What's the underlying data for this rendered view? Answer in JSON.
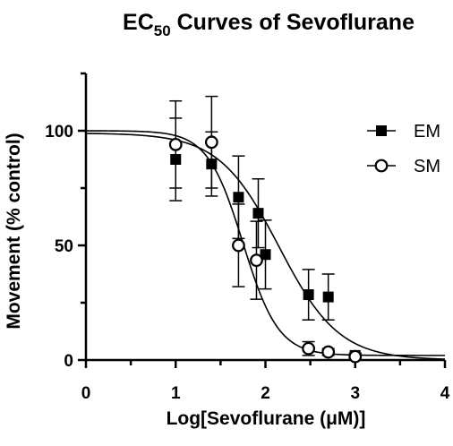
{
  "chart_data": {
    "type": "scatter",
    "title": "EC",
    "title_subscript": "50",
    "title_suffix": " Curves of Sevoflurane",
    "xlabel": "Log[Sevoflurane (μM)]",
    "ylabel": "Movement (% control)",
    "xlim": [
      0,
      4
    ],
    "ylim": [
      0,
      125
    ],
    "x_ticks": [
      0,
      1,
      2,
      3,
      4
    ],
    "y_ticks": [
      0,
      50,
      100
    ],
    "legend_position": "top-right",
    "series": [
      {
        "name": "EM",
        "marker": "filled-square",
        "points": [
          {
            "x": 1.0,
            "y": 87.5,
            "err": 18
          },
          {
            "x": 1.4,
            "y": 85.5,
            "err": 14
          },
          {
            "x": 1.7,
            "y": 71,
            "err": 18
          },
          {
            "x": 1.92,
            "y": 64,
            "err": 15
          },
          {
            "x": 2.0,
            "y": 46,
            "err": 15
          },
          {
            "x": 2.48,
            "y": 28.5,
            "err": 11
          },
          {
            "x": 2.7,
            "y": 27.5,
            "err": 10
          },
          {
            "x": 3.0,
            "y": 2,
            "err": 1
          }
        ],
        "fit": {
          "top": 99,
          "bottom": 0,
          "log_ec50": 2.15,
          "hill": 1.3
        }
      },
      {
        "name": "SM",
        "marker": "open-circle",
        "points": [
          {
            "x": 1.0,
            "y": 94,
            "err": 19
          },
          {
            "x": 1.4,
            "y": 95,
            "err": 20
          },
          {
            "x": 1.7,
            "y": 50,
            "err": 18
          },
          {
            "x": 1.9,
            "y": 43.5,
            "err": 17
          },
          {
            "x": 2.48,
            "y": 5,
            "err": 3
          },
          {
            "x": 2.7,
            "y": 3.5,
            "err": 1.5
          },
          {
            "x": 3.0,
            "y": 1.5,
            "err": 1
          }
        ],
        "fit": {
          "top": 100,
          "bottom": 2,
          "log_ec50": 1.75,
          "hill": 2.2
        }
      }
    ]
  }
}
